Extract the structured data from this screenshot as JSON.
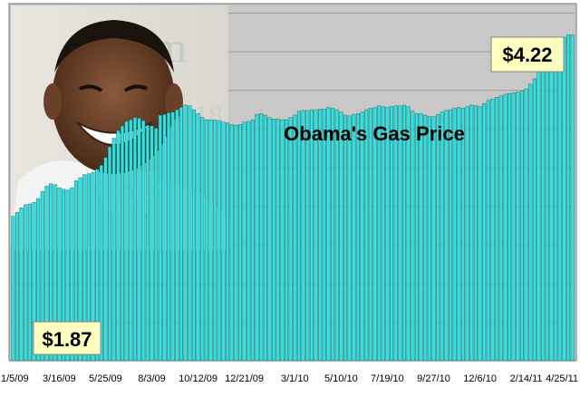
{
  "chart_data": {
    "type": "bar",
    "title": "Obama's  Gas Price",
    "xlabel": "",
    "ylabel": "",
    "ylim": [
      0,
      4.6
    ],
    "grid": true,
    "bar_color": "#33e0e0",
    "bar_edge_color": "#0a5a5a",
    "plot_bg": "#c8c8c8",
    "x_tick_labels": [
      "1/5/09",
      "3/16/09",
      "5/25/09",
      "8/3/09",
      "10/12/09",
      "12/21/09",
      "3/1/10",
      "5/10/10",
      "7/19/10",
      "9/27/10",
      "12/6/10",
      "2/14/11",
      "4/25/11"
    ],
    "callouts": [
      {
        "text": "$1.87",
        "series_point": "first"
      },
      {
        "text": "$4.22",
        "series_point": "last"
      }
    ],
    "series": [
      {
        "values": [
          1.87,
          1.92,
          1.98,
          2.02,
          2.03,
          2.05,
          2.1,
          2.19,
          2.26,
          2.29,
          2.28,
          2.24,
          2.22,
          2.21,
          2.24,
          2.33,
          2.37,
          2.41,
          2.42,
          2.44,
          2.48,
          2.53,
          2.63,
          2.77,
          2.88,
          2.98,
          3.04,
          3.1,
          3.12,
          3.15,
          3.14,
          3.11,
          3.05,
          3.04,
          3.01,
          3.18,
          3.19,
          3.21,
          3.22,
          3.25,
          3.28,
          3.31,
          3.3,
          3.25,
          3.2,
          3.15,
          3.12,
          3.12,
          3.12,
          3.11,
          3.09,
          3.08,
          3.06,
          3.05,
          3.06,
          3.09,
          3.1,
          3.12,
          3.19,
          3.2,
          3.18,
          3.15,
          3.13,
          3.13,
          3.12,
          3.12,
          3.15,
          3.18,
          3.23,
          3.24,
          3.24,
          3.25,
          3.25,
          3.26,
          3.26,
          3.28,
          3.27,
          3.25,
          3.22,
          3.18,
          3.17,
          3.19,
          3.2,
          3.22,
          3.25,
          3.27,
          3.28,
          3.3,
          3.29,
          3.28,
          3.29,
          3.3,
          3.3,
          3.31,
          3.29,
          3.23,
          3.2,
          3.2,
          3.18,
          3.16,
          3.16,
          3.19,
          3.22,
          3.24,
          3.25,
          3.27,
          3.28,
          3.27,
          3.29,
          3.31,
          3.3,
          3.29,
          3.33,
          3.37,
          3.39,
          3.41,
          3.43,
          3.45,
          3.46,
          3.47,
          3.48,
          3.49,
          3.52,
          3.58,
          3.65,
          3.79,
          3.93,
          4.02,
          4.07,
          4.12,
          4.15,
          4.19,
          4.22,
          4.22
        ]
      }
    ]
  }
}
